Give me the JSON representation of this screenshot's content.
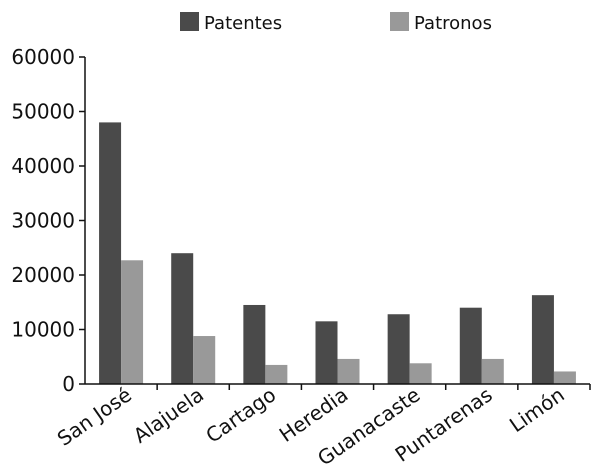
{
  "chart_data": {
    "type": "bar",
    "categories": [
      "San José",
      "Alajuela",
      "Cartago",
      "Heredia",
      "Guanacaste",
      "Puntarenas",
      "Limón"
    ],
    "series": [
      {
        "name": "Patentes",
        "color": "#4a4a4a",
        "values": [
          48000,
          24000,
          14500,
          11500,
          12800,
          14000,
          16300
        ]
      },
      {
        "name": "Patronos",
        "color": "#999999",
        "values": [
          22700,
          8800,
          3500,
          4600,
          3800,
          4600,
          2300
        ]
      }
    ],
    "yticks": [
      "0",
      "10000",
      "20000",
      "30000",
      "40000",
      "50000",
      "60000"
    ],
    "ylim": [
      0,
      60000
    ],
    "grid": false,
    "legend_position": "top"
  }
}
